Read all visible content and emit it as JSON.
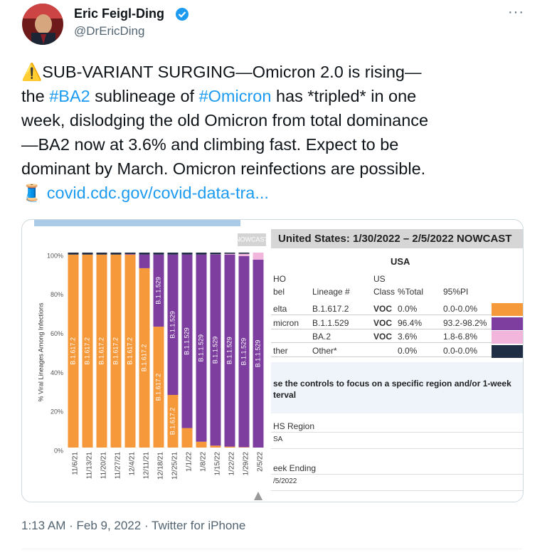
{
  "tweet": {
    "name": "Eric Feigl-Ding",
    "handle": "@DrEricDing",
    "lines": [
      [
        "⚠️SUB-VARIANT SURGING—Omicron 2.0 is rising—"
      ],
      [
        "the ",
        "#BA2",
        " sublineage of ",
        "#Omicron",
        " has *tripled* in one"
      ],
      [
        "week, dislodging the old Omicron from total dominance"
      ],
      [
        "—BA2 now at 3.6% and climbing fast. Expect to be"
      ],
      [
        "dominant by March. Omicron reinfections are possible."
      ],
      [
        "🧵 ",
        "covid.cdc.gov/covid-data-tra..."
      ]
    ],
    "timestamp": "1:13 AM · Feb 9, 2022 · Twitter for iPhone"
  },
  "chart_data": {
    "type": "bar",
    "stacked": true,
    "ylabel": "% Viral Lineages Among Infections",
    "nowcast_label": "NOWCAST",
    "categories": [
      "11/6/21",
      "11/13/21",
      "11/20/21",
      "11/27/21",
      "12/4/21",
      "12/11/21",
      "12/18/21",
      "12/25/21",
      "1/1/22",
      "1/8/22",
      "1/15/22",
      "1/22/22",
      "1/29/22",
      "2/5/22"
    ],
    "series": [
      {
        "name": "B.1.617.2",
        "color": "#f5993b",
        "values": [
          99,
          99,
          99,
          99,
          99,
          92,
          62,
          27,
          10,
          3,
          1,
          0.5,
          0.2,
          0
        ]
      },
      {
        "name": "B.1.1.529",
        "color": "#7d3e9f",
        "values": [
          0,
          0,
          0,
          0,
          0.3,
          7,
          37,
          72,
          89,
          96,
          98,
          98.5,
          98,
          96.4
        ]
      },
      {
        "name": "BA.2",
        "color": "#f2b6dc",
        "values": [
          0,
          0,
          0,
          0,
          0,
          0,
          0,
          0,
          0,
          0,
          0.1,
          0.4,
          1.2,
          3.6
        ]
      },
      {
        "color": "#1f2d45",
        "values": [
          1,
          1,
          1,
          1,
          0.7,
          1,
          1,
          1,
          1,
          1,
          0.9,
          0.6,
          0.6,
          0
        ]
      }
    ],
    "ylim": [
      0,
      100
    ],
    "yticks": [
      {
        "value": 0,
        "label": "0%"
      },
      {
        "value": 20,
        "label": "20%"
      },
      {
        "value": 40,
        "label": "40%"
      },
      {
        "value": 60,
        "label": "60%"
      },
      {
        "value": 80,
        "label": "80%"
      },
      {
        "value": 100,
        "label": "100%"
      }
    ]
  },
  "table": {
    "title": "United States: 1/30/2022 – 2/5/2022 NOWCAST",
    "region": "USA",
    "columns": [
      [
        "HO",
        "bel"
      ],
      [
        "Lineage #"
      ],
      [
        "US",
        "Class"
      ],
      [
        "%Total"
      ],
      [
        "95%PI"
      ]
    ],
    "rows": [
      {
        "cells": [
          "elta",
          "B.1.617.2",
          "VOC",
          "0.0%",
          "0.0-0.0%"
        ],
        "color": "#f5993b"
      },
      {
        "cells": [
          "micron",
          "B.1.1.529",
          "VOC",
          "96.4%",
          "93.2-98.2%"
        ],
        "color": "#7d3e9f"
      },
      {
        "cells": [
          "",
          "BA.2",
          "VOC",
          "3.6%",
          "1.8-6.8%"
        ],
        "color": "#f2b6dc"
      },
      {
        "cells": [
          "ther",
          "Other*",
          "",
          "0.0%",
          "0.0-0.0%"
        ],
        "color": "#1f2d45"
      }
    ],
    "controls_note": [
      "se the controls to focus on a specific region and/or 1-week",
      "terval"
    ],
    "region_label": "HS Region",
    "region_value": "SA",
    "week_label": "eek Ending",
    "week_value": "/5/2022"
  }
}
